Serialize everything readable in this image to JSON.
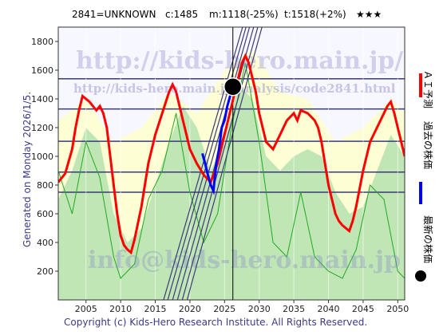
{
  "header": {
    "code_name": "2841=UNKNOWN",
    "current": "c:1485",
    "min_info": "m:1118(-25%)",
    "target_info": "t:1518(+2%)",
    "rating": "★★★"
  },
  "side_label": "Generated on Monday 2026/1/5.",
  "footer": "Copyright (c) Kids-Hero Research Institute. All Rights Reserved.",
  "watermarks": {
    "url_big": "http://kids-hero.main.jp/",
    "url_mid": "http://kids-hero.main.jp/analysis/code2841.html",
    "email": "info@kids-hero.main.jp"
  },
  "legend": {
    "forecast": "ＡＩ予測",
    "past": "過去の株価",
    "latest": "最新の株価"
  },
  "colors": {
    "forecast": "#ff0000",
    "past": "#0000ff",
    "latest": "#000000",
    "band_light": "#ffffcc",
    "band_green": "#aaddaa",
    "green_line": "#22aa22",
    "hline": "#3a3a7a"
  },
  "chart_data": {
    "type": "line",
    "xlim": [
      2001,
      2051
    ],
    "ylim": [
      0,
      1900
    ],
    "x_ticks": [
      2005,
      2010,
      2015,
      2020,
      2025,
      2030,
      2035,
      2040,
      2045,
      2050
    ],
    "y_ticks": [
      200,
      400,
      600,
      800,
      1000,
      1200,
      1400,
      1600,
      1800
    ],
    "horizontal_levels": [
      750,
      890,
      1105,
      1330,
      1540
    ],
    "current_year_line": 2026.2,
    "latest_point": {
      "x": 2026.2,
      "y": 1485
    },
    "forecast": {
      "x": [
        2001,
        2002,
        2003,
        2003.5,
        2004,
        2004.5,
        2005,
        2005.5,
        2006,
        2006.5,
        2007,
        2007.5,
        2008,
        2009,
        2009.5,
        2010,
        2010.5,
        2011,
        2011.5,
        2012,
        2013,
        2014,
        2015,
        2016,
        2017,
        2017.5,
        2018,
        2018.5,
        2019,
        2019.5,
        2020,
        2021,
        2022,
        2023,
        2024,
        2025,
        2026,
        2027,
        2027.5,
        2028,
        2028.5,
        2029,
        2029.5,
        2030,
        2031,
        2032,
        2033,
        2034,
        2035,
        2035.5,
        2036,
        2037,
        2038,
        2038.5,
        2039,
        2040,
        2041,
        2041.5,
        2042,
        2043,
        2043.5,
        2044,
        2045,
        2046,
        2047,
        2048,
        2048.5,
        2049,
        2049.5,
        2050,
        2050.5,
        2051
      ],
      "y": [
        820,
        880,
        1050,
        1200,
        1320,
        1420,
        1400,
        1380,
        1350,
        1320,
        1350,
        1300,
        1200,
        800,
        600,
        450,
        380,
        350,
        330,
        420,
        650,
        950,
        1150,
        1300,
        1450,
        1500,
        1450,
        1350,
        1250,
        1150,
        1050,
        950,
        870,
        820,
        950,
        1150,
        1350,
        1550,
        1650,
        1700,
        1650,
        1550,
        1450,
        1300,
        1100,
        1050,
        1150,
        1250,
        1300,
        1250,
        1320,
        1300,
        1250,
        1200,
        1100,
        800,
        600,
        550,
        520,
        480,
        550,
        650,
        900,
        1100,
        1200,
        1300,
        1350,
        1380,
        1300,
        1200,
        1100,
        1000
      ]
    },
    "past": {
      "x": [
        2021.8,
        2022.2,
        2022.6,
        2023.0,
        2023.4,
        2023.8,
        2024.2,
        2024.6,
        2025.0,
        2025.4,
        2025.8,
        2026.2
      ],
      "y": [
        1020,
        950,
        870,
        800,
        760,
        950,
        1050,
        1200,
        1250,
        1350,
        1420,
        1485
      ]
    },
    "green_fill": {
      "x": [
        2001,
        2003,
        2005,
        2007,
        2009,
        2011,
        2013,
        2015,
        2017,
        2019,
        2021,
        2023,
        2025,
        2026,
        2027,
        2029,
        2031,
        2033,
        2035,
        2037,
        2039,
        2041,
        2043,
        2045,
        2047,
        2049,
        2051
      ],
      "y": [
        700,
        900,
        1200,
        1100,
        600,
        400,
        500,
        800,
        1100,
        1350,
        1200,
        900,
        1100,
        1300,
        1500,
        1400,
        1000,
        900,
        1000,
        1050,
        1000,
        750,
        600,
        650,
        900,
        1150,
        1000
      ]
    },
    "yellow_band": {
      "x": [
        2001,
        2005,
        2009,
        2013,
        2017,
        2021,
        2025,
        2029,
        2033,
        2037,
        2041,
        2045,
        2049,
        2051
      ],
      "y": [
        1250,
        1400,
        1100,
        1200,
        1450,
        1300,
        1600,
        1750,
        1450,
        1400,
        1100,
        1200,
        1400,
        1300
      ]
    },
    "green_line": {
      "x": [
        2001,
        2003,
        2005,
        2007,
        2009,
        2010,
        2012,
        2014,
        2016,
        2018,
        2020,
        2022,
        2024,
        2026,
        2028,
        2030,
        2032,
        2034,
        2036,
        2038,
        2040,
        2042,
        2044,
        2046,
        2048,
        2050,
        2051
      ],
      "y": [
        900,
        600,
        1100,
        850,
        300,
        150,
        250,
        700,
        900,
        1300,
        750,
        400,
        600,
        1200,
        1650,
        1100,
        400,
        300,
        750,
        300,
        200,
        150,
        350,
        800,
        700,
        200,
        150
      ]
    },
    "channel_lines": {
      "x0": 2015.5,
      "x1": 2029.0,
      "y0_list": [
        0,
        0,
        0,
        0,
        0,
        0
      ],
      "x0_list": [
        2016.2,
        2016.8,
        2017.5,
        2018.2,
        2018.9,
        2019.6
      ],
      "x1_list": [
        2027.6,
        2028.1,
        2028.6,
        2029.2,
        2029.8,
        2030.4
      ]
    }
  }
}
